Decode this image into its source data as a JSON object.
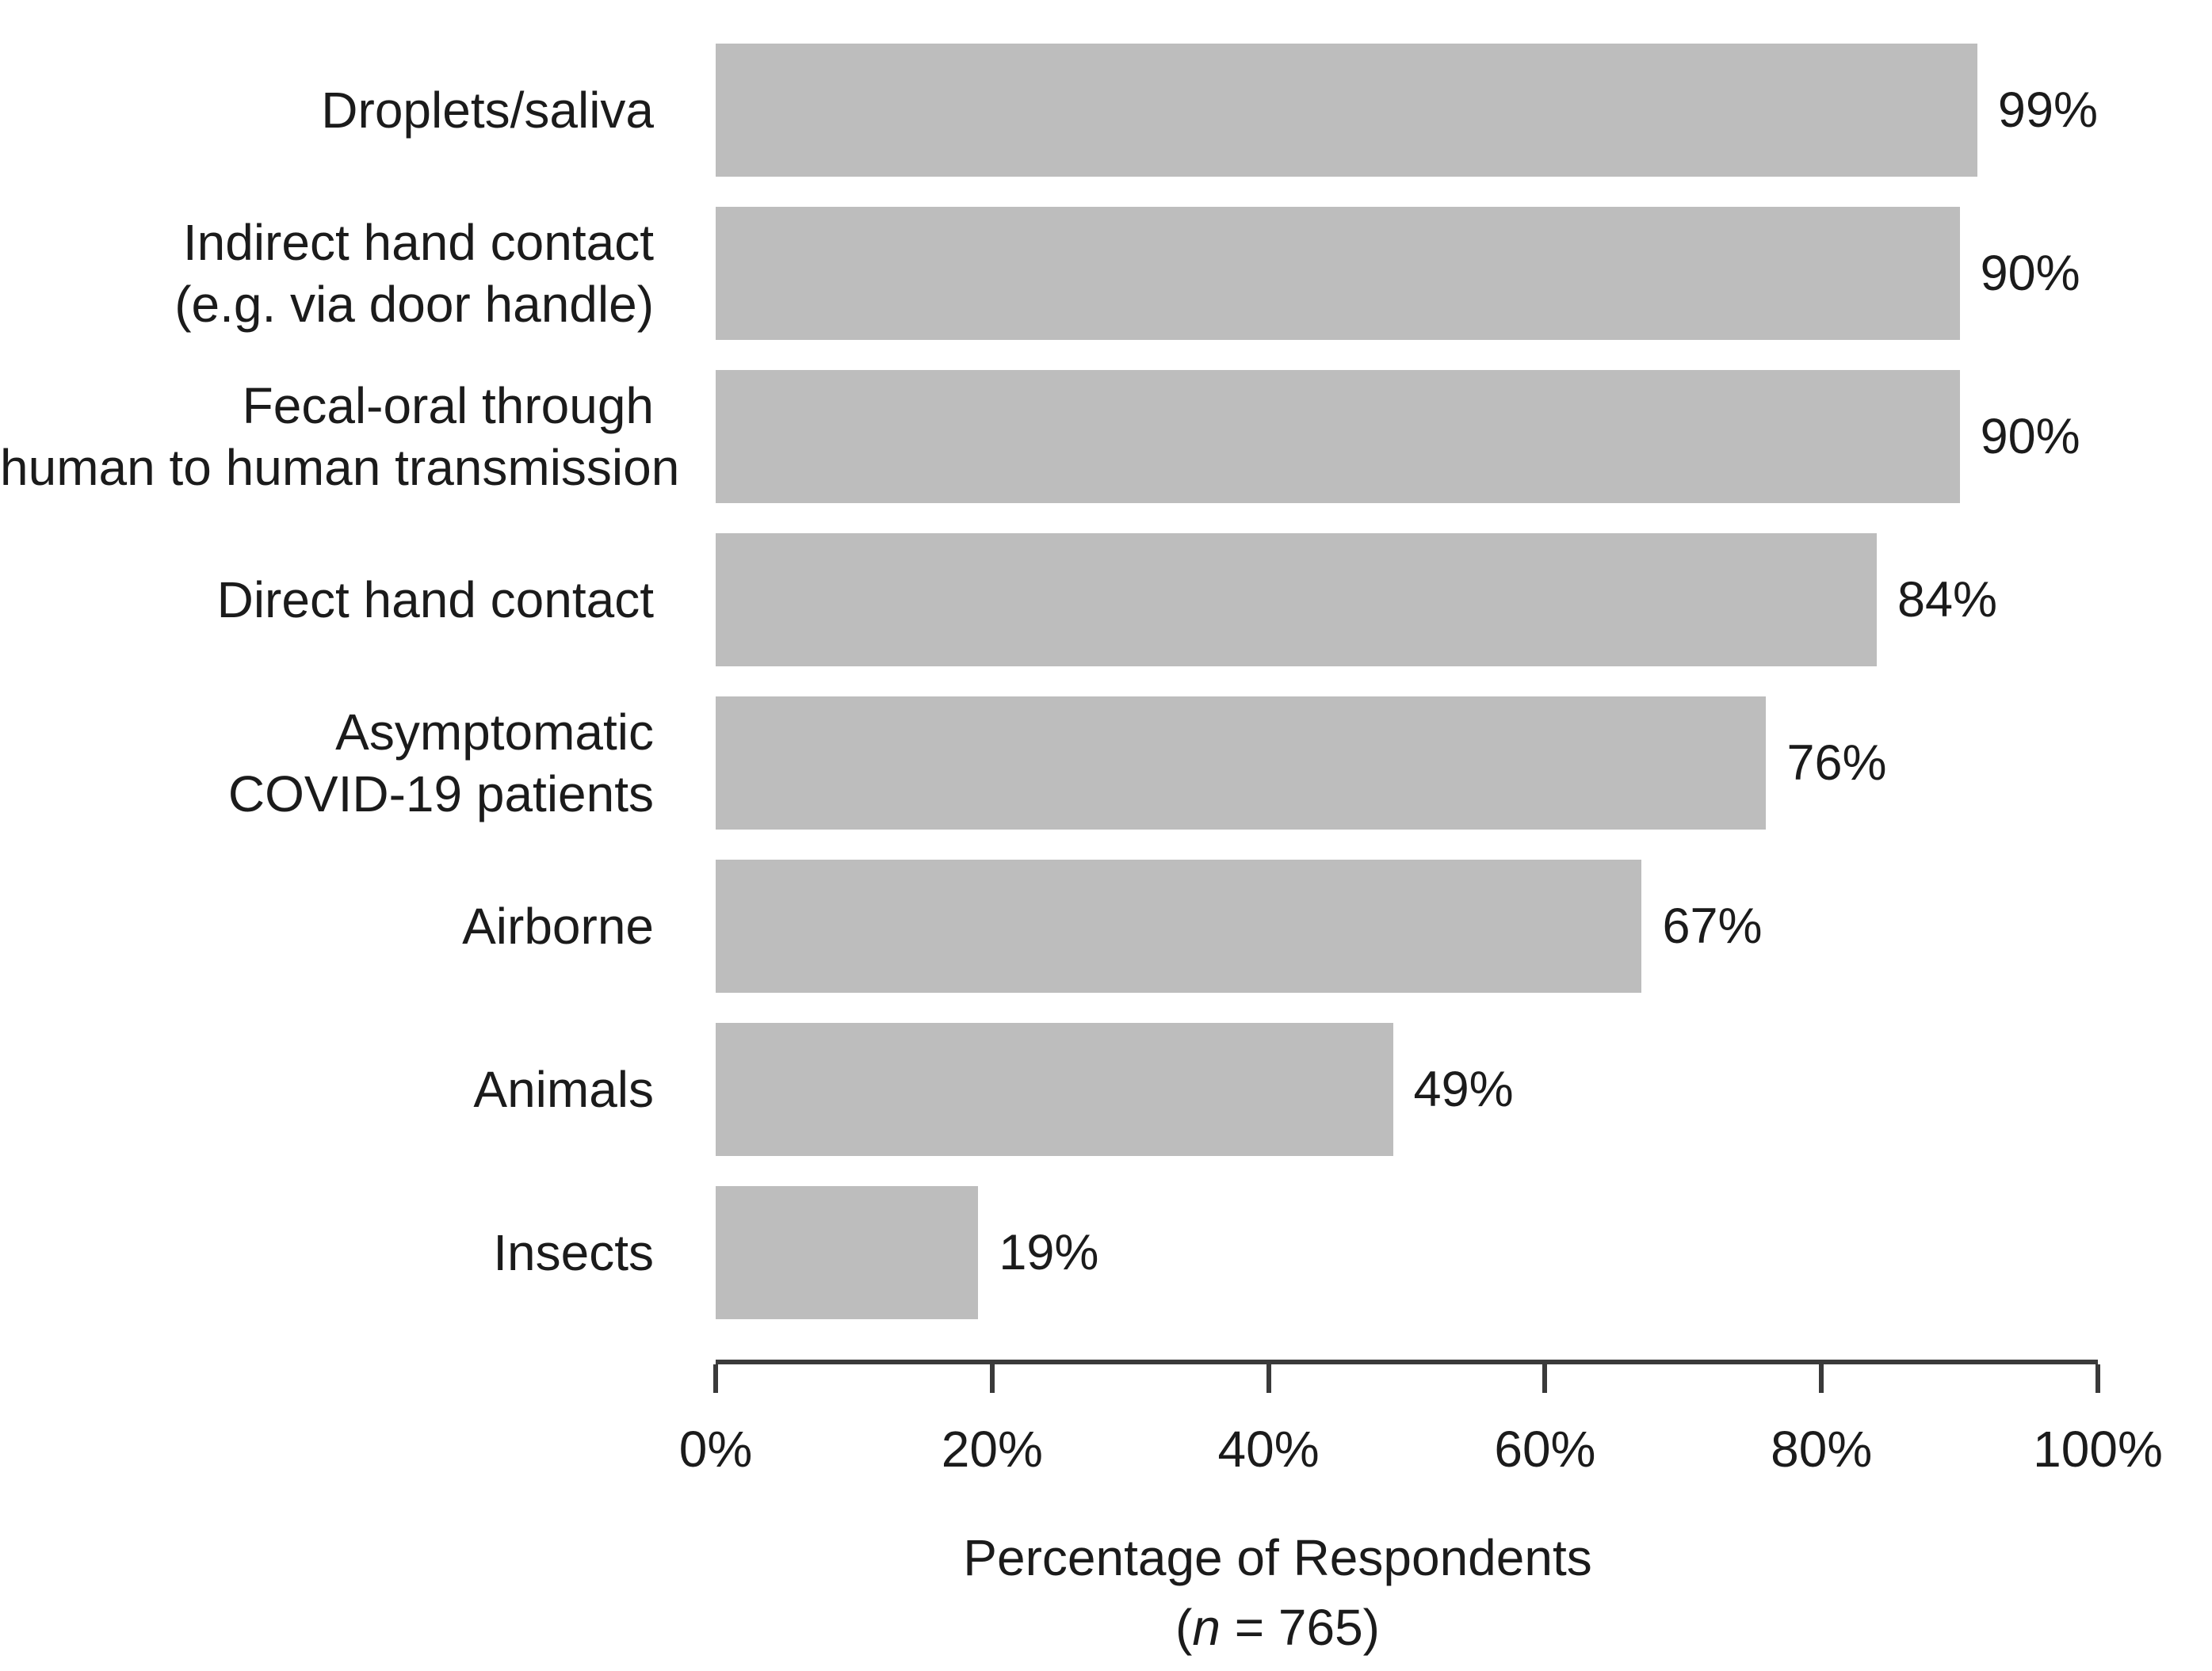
{
  "figure": {
    "background": "#ffffff"
  },
  "chart_data": {
    "type": "bar",
    "orientation": "horizontal",
    "title": "",
    "categories": [
      "Droplets/saliva",
      "Indirect hand contact (e.g. via door handle)",
      "Fecal-oral through human to human transmission",
      "Direct hand contact",
      "Asymptomatic COVID-19 patients",
      "Airborne",
      "Animals",
      "Insects"
    ],
    "label_lines": [
      [
        "Droplets/saliva"
      ],
      [
        "Indirect hand contact",
        "(e.g. via door handle)"
      ],
      [
        "Fecal-oral through",
        "human to human transmission"
      ],
      [
        "Direct hand contact"
      ],
      [
        "Asymptomatic",
        "COVID-19 patients"
      ],
      [
        "Airborne"
      ],
      [
        "Animals"
      ],
      [
        "Insects"
      ]
    ],
    "values": [
      99,
      90,
      90,
      84,
      76,
      67,
      49,
      19
    ],
    "value_labels": [
      "99%",
      "90%",
      "90%",
      "84%",
      "76%",
      "67%",
      "49%",
      "19%"
    ],
    "x_ticks": [
      "0%",
      "20%",
      "40%",
      "60%",
      "80%",
      "100%"
    ],
    "xlim": [
      0,
      100
    ],
    "xlabel": "Percentage of Respondents (n = 765)",
    "xlabel_line1": "Percentage of Respondents",
    "xlabel_line2": {
      "prefix": "(",
      "italic": "n",
      "suffix": " = 765)"
    },
    "grid": false,
    "legend": null,
    "bar_color": "#bdbdbd",
    "axis_color": "#3a3a3a",
    "text_color": "#1b1b1b"
  }
}
